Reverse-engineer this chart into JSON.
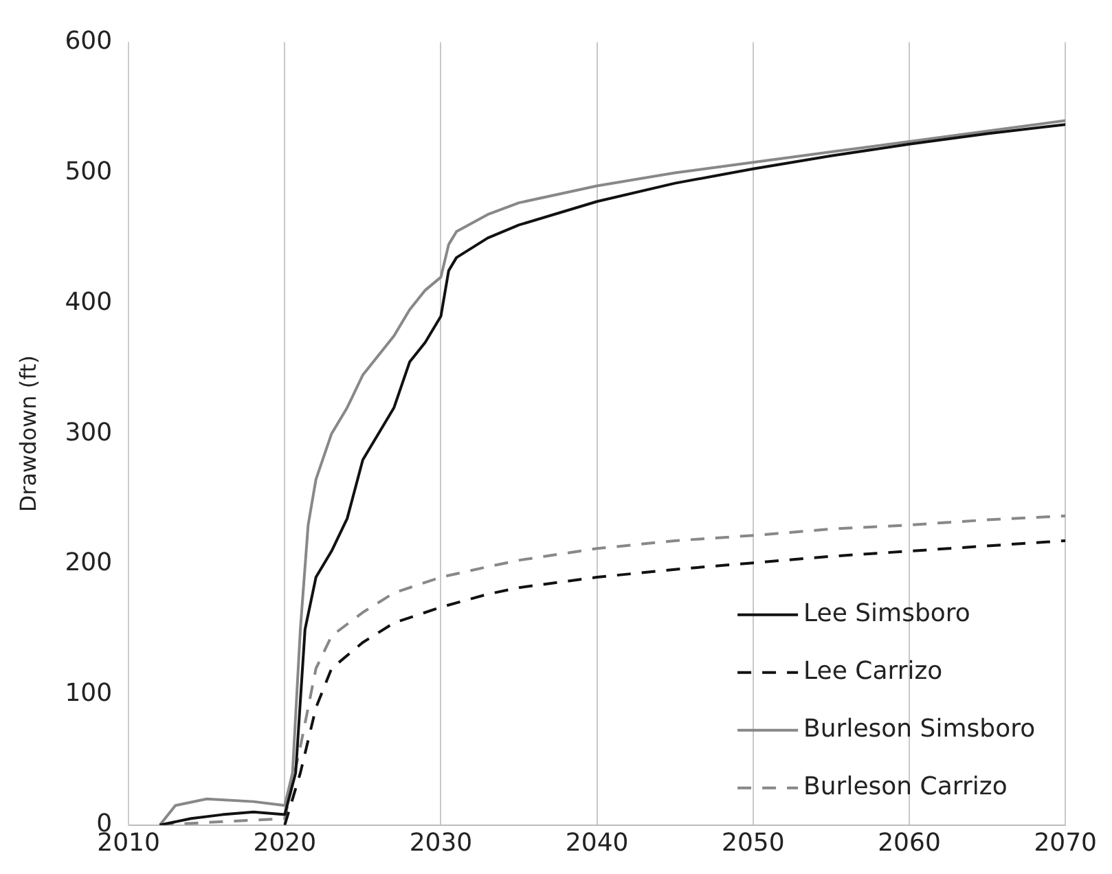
{
  "chart_data": {
    "type": "line",
    "ylabel": "Drawdown (ft)",
    "xlim": [
      2010,
      2070
    ],
    "xticks": [
      2010,
      2020,
      2030,
      2040,
      2050,
      2060,
      2070
    ],
    "ylim": [
      0,
      600
    ],
    "yticks": [
      0,
      100,
      200,
      300,
      400,
      500,
      600
    ],
    "grid": "x",
    "legend": "bottom right",
    "marker": "none",
    "series": [
      {
        "name": "Lee Simsboro",
        "color": "#111111",
        "line_style": "solid",
        "x": [
          2012,
          2014,
          2016,
          2018,
          2020,
          2020.7,
          2021.3,
          2022,
          2023,
          2024,
          2025,
          2026,
          2027,
          2028,
          2029,
          2030,
          2030.5,
          2031,
          2033,
          2035,
          2040,
          2045,
          2050,
          2055,
          2060,
          2065,
          2070
        ],
        "values": [
          0,
          5,
          8,
          10,
          8,
          40,
          150,
          190,
          210,
          235,
          280,
          300,
          320,
          355,
          370,
          390,
          425,
          435,
          450,
          460,
          478,
          492,
          503,
          513,
          522,
          530,
          537
        ]
      },
      {
        "name": "Lee Carrizo",
        "color": "#111111",
        "line_style": "dashed",
        "x": [
          2020,
          2021,
          2022,
          2023,
          2025,
          2027,
          2030,
          2033,
          2035,
          2040,
          2045,
          2050,
          2055,
          2060,
          2065,
          2070
        ],
        "values": [
          0,
          40,
          90,
          120,
          140,
          155,
          167,
          177,
          182,
          190,
          196,
          201,
          206,
          210,
          214,
          218
        ]
      },
      {
        "name": "Burleson Simsboro",
        "color": "#888888",
        "line_style": "solid",
        "x": [
          2012,
          2013,
          2015,
          2018,
          2020,
          2020.5,
          2021,
          2021.5,
          2022,
          2023,
          2024,
          2025,
          2026,
          2027,
          2028,
          2029,
          2030,
          2030.5,
          2031,
          2033,
          2035,
          2040,
          2045,
          2050,
          2055,
          2060,
          2065,
          2070
        ],
        "values": [
          0,
          15,
          20,
          18,
          15,
          40,
          150,
          230,
          265,
          300,
          320,
          345,
          360,
          375,
          395,
          410,
          420,
          445,
          455,
          468,
          477,
          490,
          500,
          508,
          516,
          524,
          532,
          540
        ]
      },
      {
        "name": "Burleson Carrizo",
        "color": "#888888",
        "line_style": "dashed",
        "x": [
          2012,
          2015,
          2020,
          2021,
          2022,
          2023,
          2025,
          2027,
          2030,
          2033,
          2035,
          2040,
          2045,
          2050,
          2055,
          2060,
          2065,
          2070
        ],
        "values": [
          0,
          2,
          5,
          60,
          120,
          145,
          163,
          178,
          190,
          198,
          203,
          212,
          218,
          222,
          227,
          230,
          234,
          237
        ]
      }
    ]
  }
}
